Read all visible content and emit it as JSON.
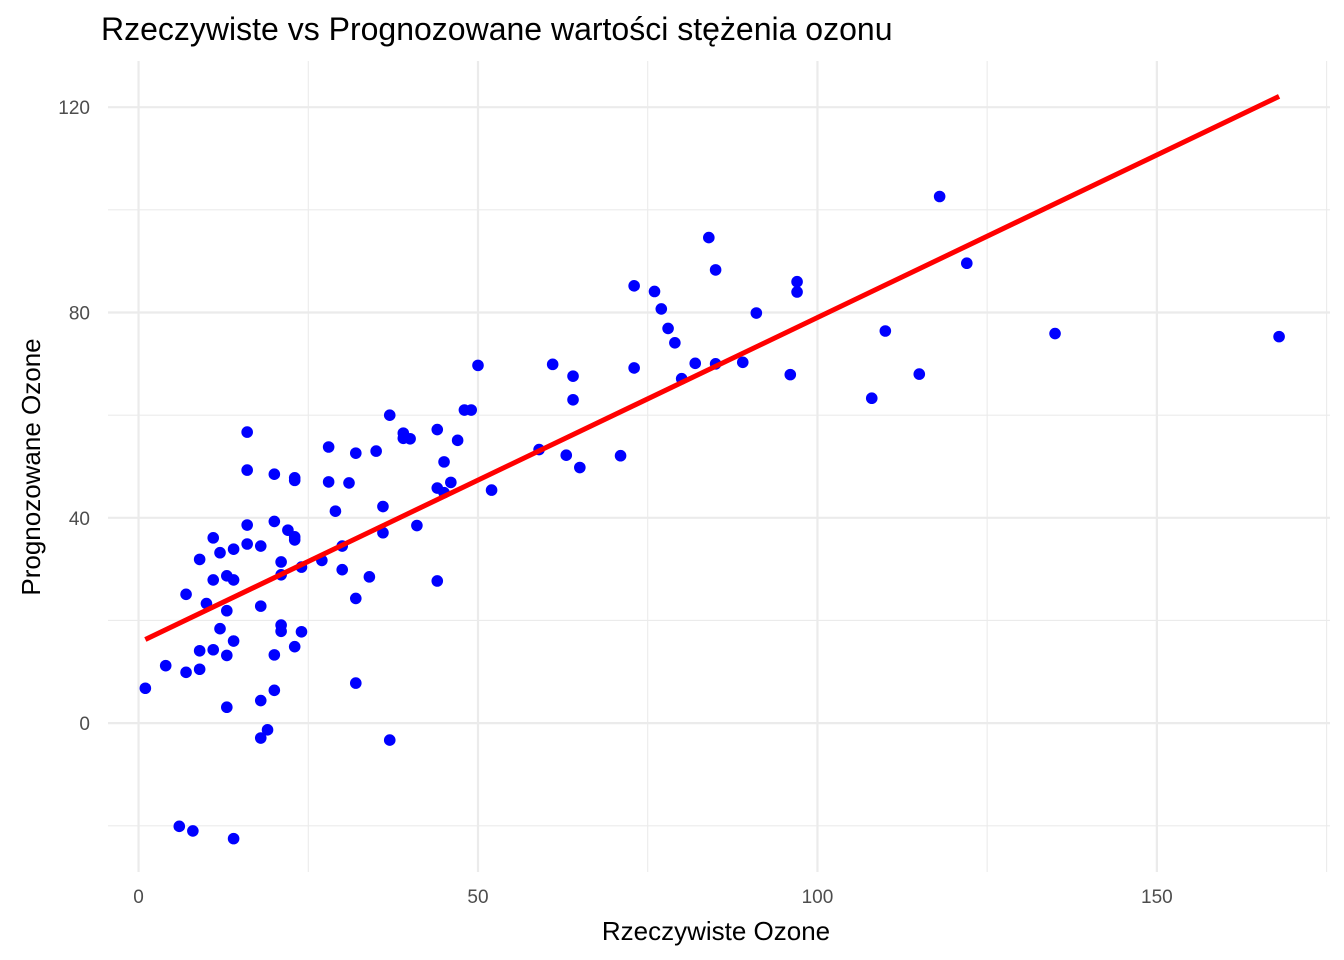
{
  "chart_data": {
    "type": "scatter",
    "title": "Rzeczywiste vs Prognozowane wartości stężenia ozonu",
    "xlabel": "Rzeczywiste Ozone",
    "ylabel": "Prognozowane Ozone",
    "xlim": [
      -4.5,
      175.5
    ],
    "ylim": [
      -29,
      129
    ],
    "x_ticks": [
      0,
      50,
      100,
      150
    ],
    "x_tick_labels": [
      "0",
      "50",
      "100",
      "150"
    ],
    "y_ticks": [
      0,
      40,
      80,
      120
    ],
    "y_tick_labels": [
      "0",
      "40",
      "80",
      "120"
    ],
    "x_minor": [
      25,
      75,
      125,
      175
    ],
    "y_minor": [
      -20,
      20,
      60,
      100
    ],
    "grid": true,
    "point_color": "#0000ff",
    "line_color": "#ff0000",
    "fit_line": {
      "x": [
        1,
        168
      ],
      "y": [
        16.3,
        122.1
      ]
    },
    "points": [
      [
        1,
        6.8
      ],
      [
        4,
        11.2
      ],
      [
        6,
        -20.1
      ],
      [
        7,
        9.9
      ],
      [
        7,
        25.1
      ],
      [
        8,
        -21.0
      ],
      [
        9,
        10.5
      ],
      [
        9,
        14.1
      ],
      [
        9,
        31.9
      ],
      [
        10,
        23.3
      ],
      [
        11,
        14.3
      ],
      [
        11,
        27.9
      ],
      [
        11,
        36.1
      ],
      [
        12,
        18.4
      ],
      [
        12,
        33.2
      ],
      [
        13,
        3.1
      ],
      [
        13,
        13.2
      ],
      [
        13,
        21.9
      ],
      [
        13,
        28.7
      ],
      [
        14,
        -22.5
      ],
      [
        14,
        16.0
      ],
      [
        14,
        27.9
      ],
      [
        14,
        33.9
      ],
      [
        16,
        34.9
      ],
      [
        16,
        38.6
      ],
      [
        16,
        49.3
      ],
      [
        16,
        56.7
      ],
      [
        18,
        -2.9
      ],
      [
        18,
        4.4
      ],
      [
        18,
        22.8
      ],
      [
        18,
        34.5
      ],
      [
        19,
        -1.3
      ],
      [
        20,
        6.4
      ],
      [
        20,
        13.3
      ],
      [
        20,
        39.3
      ],
      [
        20,
        48.5
      ],
      [
        21,
        17.9
      ],
      [
        21,
        19.1
      ],
      [
        21,
        28.9
      ],
      [
        21,
        31.4
      ],
      [
        22,
        37.6
      ],
      [
        23,
        14.9
      ],
      [
        23,
        35.7
      ],
      [
        23,
        36.3
      ],
      [
        23,
        47.3
      ],
      [
        23,
        47.8
      ],
      [
        24,
        17.8
      ],
      [
        24,
        30.4
      ],
      [
        27,
        31.7
      ],
      [
        28,
        47.0
      ],
      [
        28,
        53.8
      ],
      [
        29,
        41.3
      ],
      [
        30,
        29.9
      ],
      [
        30,
        34.5
      ],
      [
        31,
        46.8
      ],
      [
        32,
        7.8
      ],
      [
        32,
        24.3
      ],
      [
        32,
        52.6
      ],
      [
        34,
        28.5
      ],
      [
        35,
        53.0
      ],
      [
        36,
        37.1
      ],
      [
        36,
        42.2
      ],
      [
        37,
        -3.3
      ],
      [
        37,
        60.0
      ],
      [
        39,
        55.5
      ],
      [
        39,
        56.5
      ],
      [
        40,
        55.4
      ],
      [
        41,
        38.5
      ],
      [
        44,
        27.7
      ],
      [
        44,
        45.8
      ],
      [
        44,
        57.2
      ],
      [
        45,
        44.9
      ],
      [
        45,
        50.9
      ],
      [
        46,
        46.9
      ],
      [
        47,
        55.1
      ],
      [
        48,
        61.0
      ],
      [
        49,
        61.0
      ],
      [
        50,
        69.7
      ],
      [
        52,
        45.4
      ],
      [
        59,
        53.3
      ],
      [
        61,
        69.9
      ],
      [
        63,
        52.2
      ],
      [
        64,
        63.0
      ],
      [
        64,
        67.6
      ],
      [
        65,
        49.8
      ],
      [
        71,
        52.1
      ],
      [
        73,
        69.2
      ],
      [
        73,
        85.2
      ],
      [
        76,
        84.1
      ],
      [
        77,
        80.7
      ],
      [
        78,
        76.9
      ],
      [
        79,
        74.1
      ],
      [
        80,
        67.1
      ],
      [
        82,
        70.1
      ],
      [
        84,
        94.6
      ],
      [
        85,
        70.0
      ],
      [
        85,
        88.3
      ],
      [
        89,
        70.3
      ],
      [
        91,
        79.9
      ],
      [
        96,
        67.9
      ],
      [
        97,
        84.0
      ],
      [
        97,
        86.0
      ],
      [
        108,
        63.3
      ],
      [
        110,
        76.4
      ],
      [
        115,
        68.0
      ],
      [
        118,
        102.6
      ],
      [
        122,
        89.6
      ],
      [
        135,
        75.9
      ],
      [
        168,
        75.3
      ]
    ]
  }
}
